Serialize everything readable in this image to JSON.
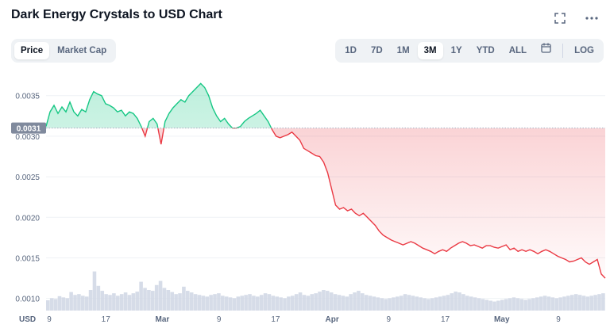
{
  "title": "Dark Energy Crystals to USD Chart",
  "icons": {
    "expand": "expand-icon",
    "more": "more-options-icon",
    "calendar": "calendar-icon"
  },
  "metric_tabs": [
    {
      "label": "Price",
      "active": true
    },
    {
      "label": "Market Cap",
      "active": false
    }
  ],
  "range_tabs": [
    {
      "label": "1D",
      "active": false
    },
    {
      "label": "7D",
      "active": false
    },
    {
      "label": "1M",
      "active": false
    },
    {
      "label": "3M",
      "active": true
    },
    {
      "label": "1Y",
      "active": false
    },
    {
      "label": "YTD",
      "active": false
    },
    {
      "label": "ALL",
      "active": false
    }
  ],
  "log_label": "LOG",
  "colors": {
    "up": "#16c784",
    "down": "#ea3943",
    "volume": "#cfd6e4",
    "grid": "#eff2f5",
    "text": "#58667e"
  },
  "chart_data": {
    "type": "line",
    "currency_label": "USD",
    "reference_value": 0.0031,
    "reference_label": "0.0031",
    "ylim": [
      0.00085,
      0.0038
    ],
    "y_ticks": [
      0.001,
      0.0015,
      0.002,
      0.0025,
      0.003,
      0.0035
    ],
    "y_tick_labels": [
      "0.0010",
      "0.0015",
      "0.0020",
      "0.0025",
      "0.0030",
      "0.0035"
    ],
    "x_ticks": [
      "9",
      "17",
      "Mar",
      "9",
      "17",
      "Apr",
      "9",
      "17",
      "May",
      "9"
    ],
    "x_tick_bold": [
      false,
      false,
      true,
      false,
      false,
      true,
      false,
      false,
      true,
      false
    ],
    "series": [
      {
        "values": [
          0.00312,
          0.0033,
          0.00338,
          0.00328,
          0.00336,
          0.0033,
          0.00342,
          0.0033,
          0.00325,
          0.00333,
          0.0033,
          0.00345,
          0.00355,
          0.00352,
          0.0035,
          0.0034,
          0.00338,
          0.00335,
          0.0033,
          0.00332,
          0.00325,
          0.0033,
          0.00328,
          0.00322,
          0.00312,
          0.003,
          0.00318,
          0.00322,
          0.00315,
          0.0029,
          0.00318,
          0.00328,
          0.00335,
          0.0034,
          0.00345,
          0.00342,
          0.0035,
          0.00355,
          0.0036,
          0.00365,
          0.0036,
          0.0035,
          0.00335,
          0.00325,
          0.00318,
          0.00322,
          0.00315,
          0.0031,
          0.0031,
          0.00312,
          0.00318,
          0.00322,
          0.00325,
          0.00328,
          0.00332,
          0.00325,
          0.00318,
          0.00308,
          0.003,
          0.00298,
          0.003,
          0.00302,
          0.00305,
          0.003,
          0.00295,
          0.00285,
          0.00282,
          0.00279,
          0.00276,
          0.00275,
          0.00268,
          0.00255,
          0.00235,
          0.00215,
          0.0021,
          0.00212,
          0.00208,
          0.0021,
          0.00205,
          0.00202,
          0.00205,
          0.002,
          0.00195,
          0.0019,
          0.00183,
          0.00178,
          0.00175,
          0.00172,
          0.0017,
          0.00168,
          0.00166,
          0.00168,
          0.0017,
          0.00168,
          0.00165,
          0.00162,
          0.0016,
          0.00158,
          0.00155,
          0.00158,
          0.0016,
          0.00158,
          0.00162,
          0.00165,
          0.00168,
          0.0017,
          0.00168,
          0.00165,
          0.00166,
          0.00164,
          0.00162,
          0.00165,
          0.00165,
          0.00163,
          0.00162,
          0.00164,
          0.00166,
          0.0016,
          0.00162,
          0.00158,
          0.0016,
          0.00158,
          0.0016,
          0.00158,
          0.00155,
          0.00158,
          0.0016,
          0.00158,
          0.00155,
          0.00152,
          0.0015,
          0.00148,
          0.00145,
          0.00146,
          0.00148,
          0.0015,
          0.00145,
          0.00142,
          0.00145,
          0.00148,
          0.0013,
          0.00125
        ]
      }
    ],
    "volume": [
      0.25,
      0.3,
      0.28,
      0.35,
      0.32,
      0.3,
      0.45,
      0.38,
      0.4,
      0.36,
      0.34,
      0.5,
      0.95,
      0.6,
      0.48,
      0.4,
      0.38,
      0.42,
      0.36,
      0.4,
      0.44,
      0.38,
      0.42,
      0.46,
      0.7,
      0.55,
      0.5,
      0.48,
      0.62,
      0.72,
      0.55,
      0.5,
      0.45,
      0.4,
      0.42,
      0.58,
      0.48,
      0.44,
      0.4,
      0.38,
      0.36,
      0.34,
      0.38,
      0.4,
      0.42,
      0.36,
      0.34,
      0.32,
      0.3,
      0.34,
      0.36,
      0.38,
      0.4,
      0.36,
      0.34,
      0.38,
      0.42,
      0.4,
      0.36,
      0.34,
      0.32,
      0.3,
      0.34,
      0.36,
      0.4,
      0.44,
      0.38,
      0.36,
      0.4,
      0.42,
      0.46,
      0.5,
      0.48,
      0.44,
      0.4,
      0.38,
      0.36,
      0.34,
      0.4,
      0.44,
      0.48,
      0.42,
      0.38,
      0.36,
      0.34,
      0.32,
      0.3,
      0.28,
      0.3,
      0.32,
      0.34,
      0.36,
      0.4,
      0.38,
      0.36,
      0.34,
      0.32,
      0.3,
      0.28,
      0.3,
      0.32,
      0.34,
      0.36,
      0.38,
      0.42,
      0.46,
      0.44,
      0.4,
      0.36,
      0.34,
      0.32,
      0.3,
      0.28,
      0.26,
      0.24,
      0.22,
      0.24,
      0.26,
      0.28,
      0.3,
      0.32,
      0.3,
      0.28,
      0.26,
      0.28,
      0.3,
      0.32,
      0.34,
      0.36,
      0.34,
      0.32,
      0.3,
      0.32,
      0.34,
      0.36,
      0.38,
      0.4,
      0.38,
      0.36,
      0.34,
      0.36,
      0.38,
      0.4,
      0.42
    ]
  }
}
